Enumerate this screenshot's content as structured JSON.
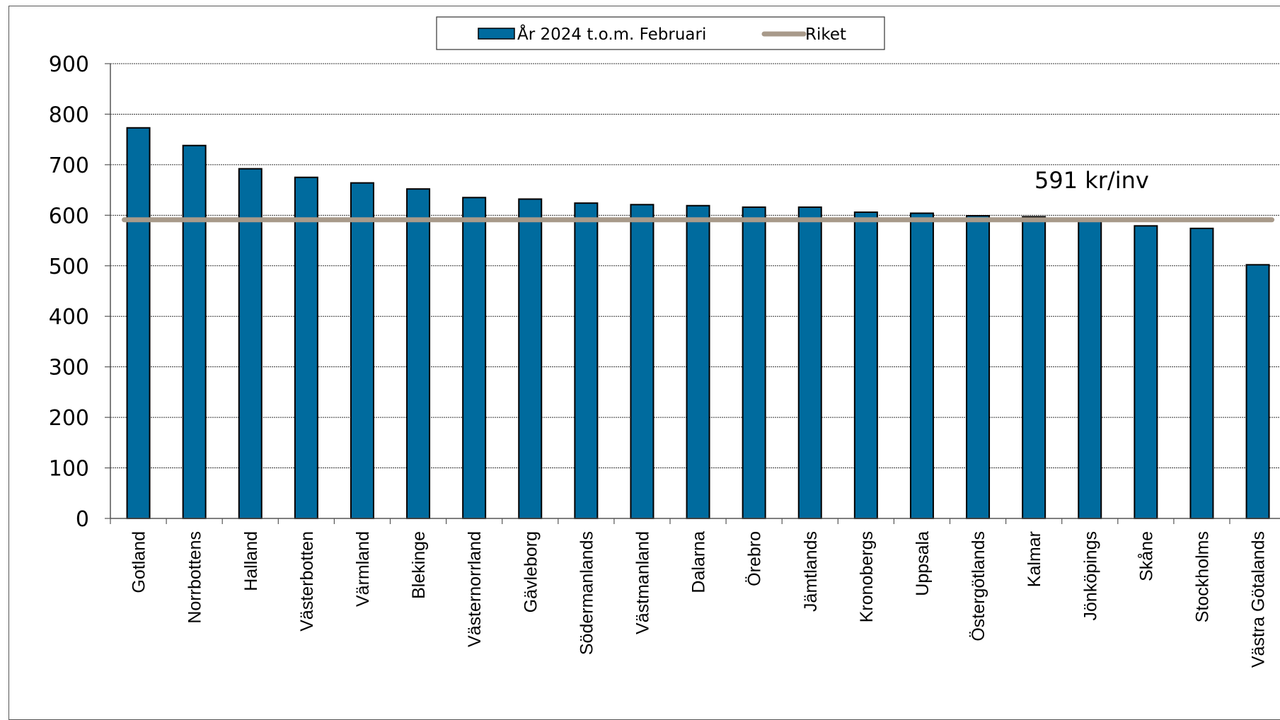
{
  "chart_data": {
    "type": "bar",
    "categories": [
      "Gotland",
      "Norrbottens",
      "Halland",
      "Västerbotten",
      "Värmland",
      "Blekinge",
      "Västernorrland",
      "Gävleborg",
      "Södermanlands",
      "Västmanland",
      "Dalarna",
      "Örebro",
      "Jämtlands",
      "Kronobergs",
      "Uppsala",
      "Östergötlands",
      "Kalmar",
      "Jönköpings",
      "Skåne",
      "Stockholms",
      "Västra Götalands"
    ],
    "series": [
      {
        "name": "År 2024 t.o.m. Februari",
        "color": "#006b9e",
        "values": [
          773,
          738,
          692,
          675,
          664,
          652,
          635,
          632,
          624,
          621,
          619,
          616,
          616,
          606,
          604,
          599,
          597,
          594,
          579,
          574,
          502
        ]
      }
    ],
    "reference_line": {
      "name": "Riket",
      "value": 591,
      "label": "591 kr/inv",
      "color": "#a89a8a"
    },
    "ylim": [
      0,
      900
    ],
    "yticks": [
      "0",
      "100",
      "200",
      "300",
      "400",
      "500",
      "600",
      "700",
      "800",
      "900"
    ],
    "grid": true,
    "legend_position": "top-center"
  }
}
